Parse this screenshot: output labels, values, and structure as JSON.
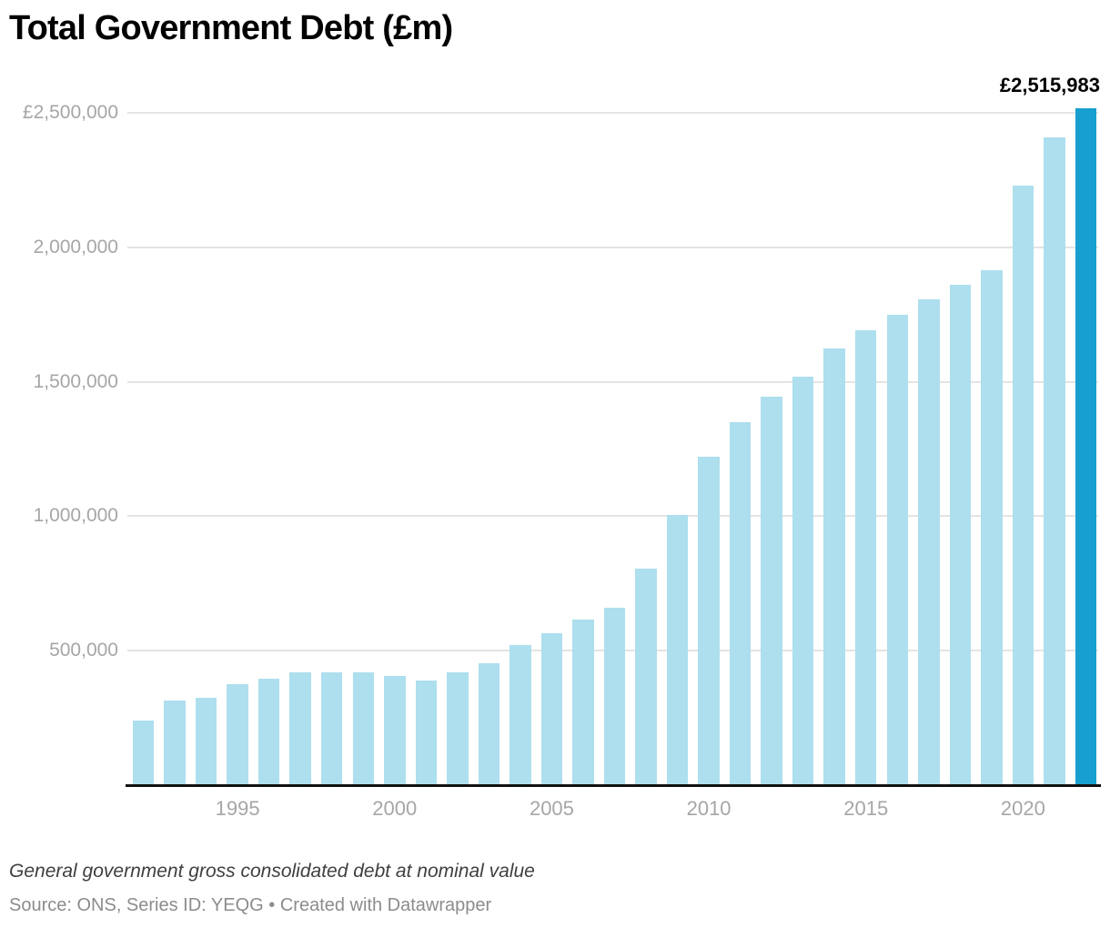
{
  "title": "Total Government Debt (£m)",
  "annotation": {
    "top_value_label": "£2,515,983"
  },
  "footer": {
    "description": "General government gross consolidated debt at nominal value",
    "source": "Source: ONS, Series ID: YEQG • Created with Datawrapper"
  },
  "colors": {
    "background": "#FFFFFF",
    "bar": "#ADDFEE",
    "bar_highlight": "#17A0CF",
    "gridline": "#E4E4E4",
    "axis_line": "#111111",
    "tick_label": "#A6A6A6",
    "title": "#000000",
    "value_label": "#000000",
    "note": "#3F3F3F",
    "source": "#8C8C8C"
  },
  "chart_data": {
    "type": "bar",
    "title": "Total Government Debt (£m)",
    "xlabel": "",
    "ylabel": "£m",
    "ylim": [
      0,
      2500000
    ],
    "grid": true,
    "legend": "none",
    "categories": [
      1992,
      1993,
      1994,
      1995,
      1996,
      1997,
      1998,
      1999,
      2000,
      2001,
      2002,
      2003,
      2004,
      2005,
      2006,
      2007,
      2008,
      2009,
      2010,
      2011,
      2012,
      2013,
      2014,
      2015,
      2016,
      2017,
      2018,
      2019,
      2020,
      2021,
      2022
    ],
    "values": [
      240000,
      315000,
      325000,
      375000,
      395000,
      420000,
      420000,
      420000,
      405000,
      390000,
      420000,
      455000,
      520000,
      565000,
      615000,
      660000,
      805000,
      1005000,
      1220000,
      1350000,
      1445000,
      1520000,
      1625000,
      1690000,
      1750000,
      1805000,
      1860000,
      1915000,
      2230000,
      2410000,
      2515983
    ],
    "highlight_index": 30,
    "highlight_category": 2022,
    "data_label": {
      "category": 2022,
      "text": "£2,515,983"
    },
    "y_ticks": [
      {
        "value": 2500000,
        "label": "£2,500,000"
      },
      {
        "value": 2000000,
        "label": "2,000,000"
      },
      {
        "value": 1500000,
        "label": "1,500,000"
      },
      {
        "value": 1000000,
        "label": "1,000,000"
      },
      {
        "value": 500000,
        "label": "500,000"
      }
    ],
    "x_ticks": [
      1995,
      2000,
      2005,
      2010,
      2015,
      2020
    ]
  }
}
